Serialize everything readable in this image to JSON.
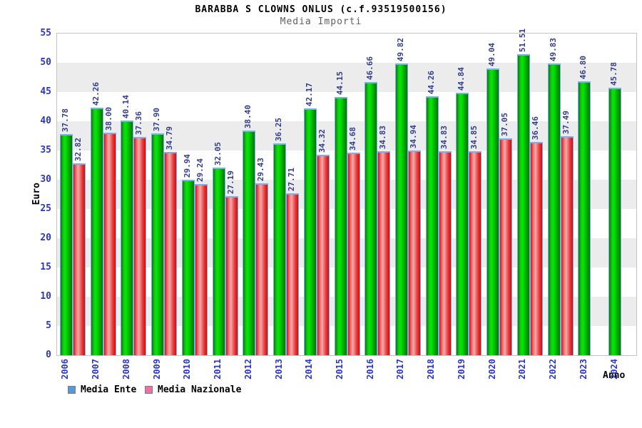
{
  "chart_data": {
    "type": "bar",
    "title": "BARABBA S CLOWNS ONLUS (c.f.93519500156)",
    "subtitle": "Media Importi",
    "xlabel": "Anno",
    "ylabel": "Euro",
    "ylim": [
      0,
      55
    ],
    "ytick_step": 5,
    "grid": "alternating horizontal bands every 5 units",
    "legend_position": "bottom-left",
    "categories": [
      "2006",
      "2007",
      "2008",
      "2009",
      "2010",
      "2011",
      "2012",
      "2013",
      "2014",
      "2015",
      "2016",
      "2017",
      "2018",
      "2019",
      "2020",
      "2021",
      "2022",
      "2023",
      "2024"
    ],
    "series": [
      {
        "name": "Media Ente",
        "legend_color": "#559ae0",
        "bar_gradient": [
          "#0a7a0a",
          "#15cf15",
          "#00e800",
          "#00a400",
          "#077307"
        ],
        "values": [
          37.78,
          42.26,
          40.14,
          37.9,
          29.94,
          32.05,
          38.4,
          36.25,
          42.17,
          44.15,
          46.66,
          49.82,
          44.26,
          44.84,
          49.04,
          51.51,
          49.83,
          46.8,
          45.78
        ]
      },
      {
        "name": "Media Nazionale",
        "legend_color": "#ee6fa8",
        "bar_gradient": [
          "#e01010",
          "#f07878",
          "#f4a8a8",
          "#e83a3a",
          "#cf0d0d"
        ],
        "values": [
          32.82,
          38.0,
          37.36,
          34.79,
          29.24,
          27.19,
          29.43,
          27.71,
          34.32,
          34.68,
          34.83,
          34.94,
          34.83,
          34.85,
          37.05,
          36.46,
          37.49,
          null,
          null
        ]
      }
    ]
  },
  "colors": {
    "title": "#000000",
    "subtitle": "#5f5f5f",
    "axis_labels": "#2a35cc",
    "value_labels": "#333d8c",
    "plot_border": "#c4c4c4",
    "band_white": "#ffffff",
    "band_gray": "#ececec",
    "bar_outline": "#79aef0"
  }
}
